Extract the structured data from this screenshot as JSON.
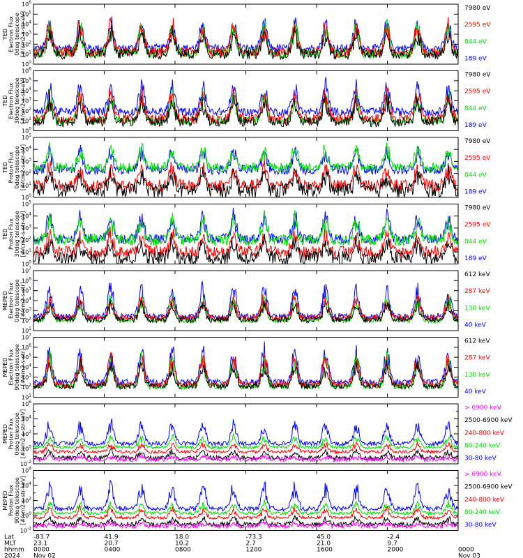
{
  "chart_data": {
    "type": "line",
    "panels": [
      {
        "ylabel_lines": [
          "TED",
          "Electron Flux",
          "0deg telescope",
          "[#/cm2-s-str-eV]"
        ],
        "ymin_exp": 0,
        "ymax_exp": 6,
        "channels": [
          {
            "name": "7980 eV",
            "color": "#000000",
            "base": 1.0,
            "spread": 0.5,
            "peak": 2.2
          },
          {
            "name": "2595 eV",
            "color": "#ff0000",
            "base": 1.2,
            "spread": 0.5,
            "peak": 2.8
          },
          {
            "name": "844 eV",
            "color": "#00dd00",
            "base": 1.1,
            "spread": 0.5,
            "peak": 2.8
          },
          {
            "name": "189 eV",
            "color": "#0000ff",
            "base": 1.6,
            "spread": 0.4,
            "peak": 2.6
          }
        ]
      },
      {
        "ylabel_lines": [
          "TED",
          "Electron Flux",
          "30deg telescope",
          "[#/cm2-s-str-eV]"
        ],
        "ymin_exp": 0,
        "ymax_exp": 6,
        "channels": [
          {
            "name": "7980 eV",
            "color": "#000000",
            "base": 0.9,
            "spread": 0.5,
            "peak": 2.2
          },
          {
            "name": "2595 eV",
            "color": "#ff0000",
            "base": 1.2,
            "spread": 0.5,
            "peak": 2.6
          },
          {
            "name": "844 eV",
            "color": "#00dd00",
            "base": 1.0,
            "spread": 0.4,
            "peak": 2.6
          },
          {
            "name": "189 eV",
            "color": "#0000ff",
            "base": 1.9,
            "spread": 0.4,
            "peak": 2.8
          }
        ]
      },
      {
        "ylabel_lines": [
          "TED",
          "Proton Flux",
          "0deg telescope",
          "[#/cm2-s-str-eV]"
        ],
        "ymin_exp": 0,
        "ymax_exp": 5,
        "channels": [
          {
            "name": "7980 eV",
            "color": "#000000",
            "base": 0.6,
            "spread": 0.6,
            "peak": 1.5
          },
          {
            "name": "2595 eV",
            "color": "#ff0000",
            "base": 1.0,
            "spread": 0.5,
            "peak": 1.6
          },
          {
            "name": "844 eV",
            "color": "#00dd00",
            "base": 2.5,
            "spread": 0.4,
            "peak": 1.6
          },
          {
            "name": "189 eV",
            "color": "#0000ff",
            "base": 2.3,
            "spread": 0.4,
            "peak": 1.7
          }
        ]
      },
      {
        "ylabel_lines": [
          "TED",
          "Proton Flux",
          "30deg telescope",
          "[#/cm2-s-str-eV]"
        ],
        "ymin_exp": 0,
        "ymax_exp": 5,
        "channels": [
          {
            "name": "7980 eV",
            "color": "#000000",
            "base": 0.5,
            "spread": 0.6,
            "peak": 1.4
          },
          {
            "name": "2595 eV",
            "color": "#ff0000",
            "base": 1.0,
            "spread": 0.5,
            "peak": 1.5
          },
          {
            "name": "844 eV",
            "color": "#00dd00",
            "base": 2.0,
            "spread": 0.5,
            "peak": 1.8
          },
          {
            "name": "189 eV",
            "color": "#0000ff",
            "base": 2.1,
            "spread": 0.4,
            "peak": 2.0
          }
        ]
      },
      {
        "ylabel_lines": [
          "MEPED",
          "Electron Flux",
          "0deg telescope",
          "[#/cm2-s-str]"
        ],
        "ymin_exp": 1,
        "ymax_exp": 7,
        "channels": [
          {
            "name": "612 keV",
            "color": "#000000",
            "base": 2.1,
            "spread": 0.3,
            "peak": 1.6
          },
          {
            "name": "287 keV",
            "color": "#ff0000",
            "base": 2.3,
            "spread": 0.3,
            "peak": 2.0
          },
          {
            "name": "130 keV",
            "color": "#00dd00",
            "base": 2.0,
            "spread": 0.2,
            "peak": 2.3
          },
          {
            "name": "40 keV",
            "color": "#0000ff",
            "base": 2.4,
            "spread": 0.3,
            "peak": 3.0
          }
        ]
      },
      {
        "ylabel_lines": [
          "MEPED",
          "Electron Flux",
          "90deg telescope",
          "[#/cm2-s-str]"
        ],
        "ymin_exp": 1,
        "ymax_exp": 7,
        "channels": [
          {
            "name": "612 keV",
            "color": "#000000",
            "base": 2.1,
            "spread": 0.3,
            "peak": 2.2
          },
          {
            "name": "287 keV",
            "color": "#ff0000",
            "base": 2.3,
            "spread": 0.3,
            "peak": 2.8
          },
          {
            "name": "130 keV",
            "color": "#00dd00",
            "base": 2.1,
            "spread": 0.3,
            "peak": 2.8
          },
          {
            "name": "40 keV",
            "color": "#0000ff",
            "base": 2.5,
            "spread": 0.3,
            "peak": 3.3
          }
        ]
      },
      {
        "ylabel_lines": [
          "MEPED",
          "Proton Flux",
          "0deg telescope",
          "[#/cm2-s-str-keV]"
        ],
        "ymin_exp": -2,
        "ymax_exp": 6,
        "channels": [
          {
            "name": "> 6900 keV",
            "color": "#ff00ff",
            "base": -1.4,
            "spread": 0.3,
            "peak": 0.4
          },
          {
            "name": "2500-6900 keV",
            "color": "#000000",
            "base": -1.2,
            "spread": 0.3,
            "peak": 0.9
          },
          {
            "name": "240-800 keV",
            "color": "#ff0000",
            "base": -0.4,
            "spread": 0.2,
            "peak": 1.1
          },
          {
            "name": "80-240 keV",
            "color": "#00dd00",
            "base": 0.2,
            "spread": 0.2,
            "peak": 1.4
          },
          {
            "name": "30-80 keV",
            "color": "#0000ff",
            "base": 0.7,
            "spread": 0.3,
            "peak": 2.8
          }
        ]
      },
      {
        "ylabel_lines": [
          "MEPED",
          "Proton Flux",
          "90deg telescope",
          "[#/cm2-s-str-keV]"
        ],
        "ymin_exp": -2,
        "ymax_exp": 6,
        "channels": [
          {
            "name": "> 6900 keV",
            "color": "#ff00ff",
            "base": -1.4,
            "spread": 0.3,
            "peak": 0.4
          },
          {
            "name": "2500-6900 keV",
            "color": "#000000",
            "base": -1.2,
            "spread": 0.3,
            "peak": 0.9
          },
          {
            "name": "240-800 keV",
            "color": "#ff0000",
            "base": -0.3,
            "spread": 0.2,
            "peak": 1.2
          },
          {
            "name": "80-240 keV",
            "color": "#00dd00",
            "base": 0.3,
            "spread": 0.2,
            "peak": 1.4
          },
          {
            "name": "30-80 keV",
            "color": "#0000ff",
            "base": 0.9,
            "spread": 0.3,
            "peak": 3.1
          }
        ]
      }
    ],
    "x_axis": {
      "row_labels": [
        "Lat",
        "MLT",
        "hhmm",
        "2024"
      ],
      "ticks": [
        {
          "t": 0,
          "lat": "-83.7",
          "mlt": "23.1",
          "hhmm": "0000",
          "date": "Nov 02"
        },
        {
          "t": 4,
          "lat": "41.9",
          "mlt": "20.7",
          "hhmm": "0400",
          "date": ""
        },
        {
          "t": 8,
          "lat": "18.0",
          "mlt": "10.2",
          "hhmm": "0800",
          "date": ""
        },
        {
          "t": 12,
          "lat": "-73.3",
          "mlt": "2.7",
          "hhmm": "1200",
          "date": ""
        },
        {
          "t": 16,
          "lat": "45.0",
          "mlt": "21.0",
          "hhmm": "1600",
          "date": ""
        },
        {
          "t": 20,
          "lat": "-2.4",
          "mlt": "9.7",
          "hhmm": "2000",
          "date": ""
        },
        {
          "t": 24,
          "lat": "",
          "mlt": "",
          "hhmm": "0000",
          "date": "Nov 03"
        }
      ],
      "range_hours": [
        0,
        24
      ]
    },
    "pass_count": 14
  }
}
